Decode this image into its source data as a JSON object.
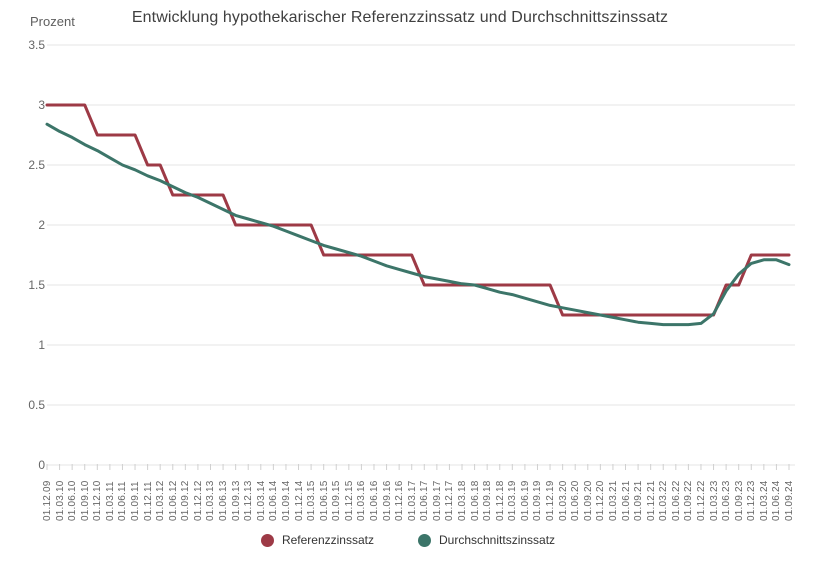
{
  "chart_data": {
    "type": "line",
    "title": "Entwicklung hypothekarischer Referenzzinssatz und Durchschnittszinssatz",
    "ylabel": "Prozent",
    "ylim": [
      0,
      3.5
    ],
    "yticks": [
      "3.5",
      "3",
      "2.5",
      "2",
      "1.5",
      "1",
      "0.5",
      "0"
    ],
    "grid": true,
    "legend_position": "bottom",
    "grid_color": "#e4e4e4",
    "tick_color": "#d0d0d0",
    "categories": [
      "01.12.09",
      "01.03.10",
      "01.06.10",
      "01.09.10",
      "01.12.10",
      "01.03.11",
      "01.06.11",
      "01.09.11",
      "01.12.11",
      "01.03.12",
      "01.06.12",
      "01.09.12",
      "01.12.12",
      "01.03.13",
      "01.06.13",
      "01.09.13",
      "01.12.13",
      "01.03.14",
      "01.06.14",
      "01.09.14",
      "01.12.14",
      "01.03.15",
      "01.06.15",
      "01.09.15",
      "01.12.15",
      "01.03.16",
      "01.06.16",
      "01.09.16",
      "01.12.16",
      "01.03.17",
      "01.06.17",
      "01.09.17",
      "01.12.17",
      "01.03.18",
      "01.06.18",
      "01.09.18",
      "01.12.18",
      "01.03.19",
      "01.06.19",
      "01.09.19",
      "01.12.19",
      "01.03.20",
      "01.06.20",
      "01.09.20",
      "01.12.20",
      "01.03.21",
      "01.06.21",
      "01.09.21",
      "01.12.21",
      "01.03.22",
      "01.06.22",
      "01.09.22",
      "01.12.22",
      "01.03.23",
      "01.06.23",
      "01.09.23",
      "01.12.23",
      "01.03.24",
      "01.06.24",
      "01.09.24"
    ],
    "series": [
      {
        "name": "Referenzzinssatz",
        "color": "#9d3a46",
        "values": [
          3,
          3,
          3,
          3,
          2.75,
          2.75,
          2.75,
          2.75,
          2.5,
          2.5,
          2.25,
          2.25,
          2.25,
          2.25,
          2.25,
          2,
          2,
          2,
          2,
          2,
          2,
          2,
          1.75,
          1.75,
          1.75,
          1.75,
          1.75,
          1.75,
          1.75,
          1.75,
          1.5,
          1.5,
          1.5,
          1.5,
          1.5,
          1.5,
          1.5,
          1.5,
          1.5,
          1.5,
          1.5,
          1.25,
          1.25,
          1.25,
          1.25,
          1.25,
          1.25,
          1.25,
          1.25,
          1.25,
          1.25,
          1.25,
          1.25,
          1.25,
          1.5,
          1.5,
          1.75,
          1.75,
          1.75,
          1.75
        ]
      },
      {
        "name": "Durchschnittszinssatz",
        "color": "#3c7569",
        "values": [
          2.84,
          2.78,
          2.73,
          2.67,
          2.62,
          2.56,
          2.5,
          2.46,
          2.41,
          2.37,
          2.32,
          2.27,
          2.23,
          2.18,
          2.13,
          2.08,
          2.05,
          2.02,
          1.99,
          1.95,
          1.91,
          1.87,
          1.83,
          1.8,
          1.77,
          1.74,
          1.7,
          1.66,
          1.63,
          1.6,
          1.57,
          1.55,
          1.53,
          1.51,
          1.5,
          1.47,
          1.44,
          1.42,
          1.39,
          1.36,
          1.33,
          1.31,
          1.29,
          1.27,
          1.25,
          1.23,
          1.21,
          1.19,
          1.18,
          1.17,
          1.17,
          1.17,
          1.18,
          1.26,
          1.45,
          1.59,
          1.68,
          1.71,
          1.71,
          1.67
        ]
      }
    ]
  }
}
